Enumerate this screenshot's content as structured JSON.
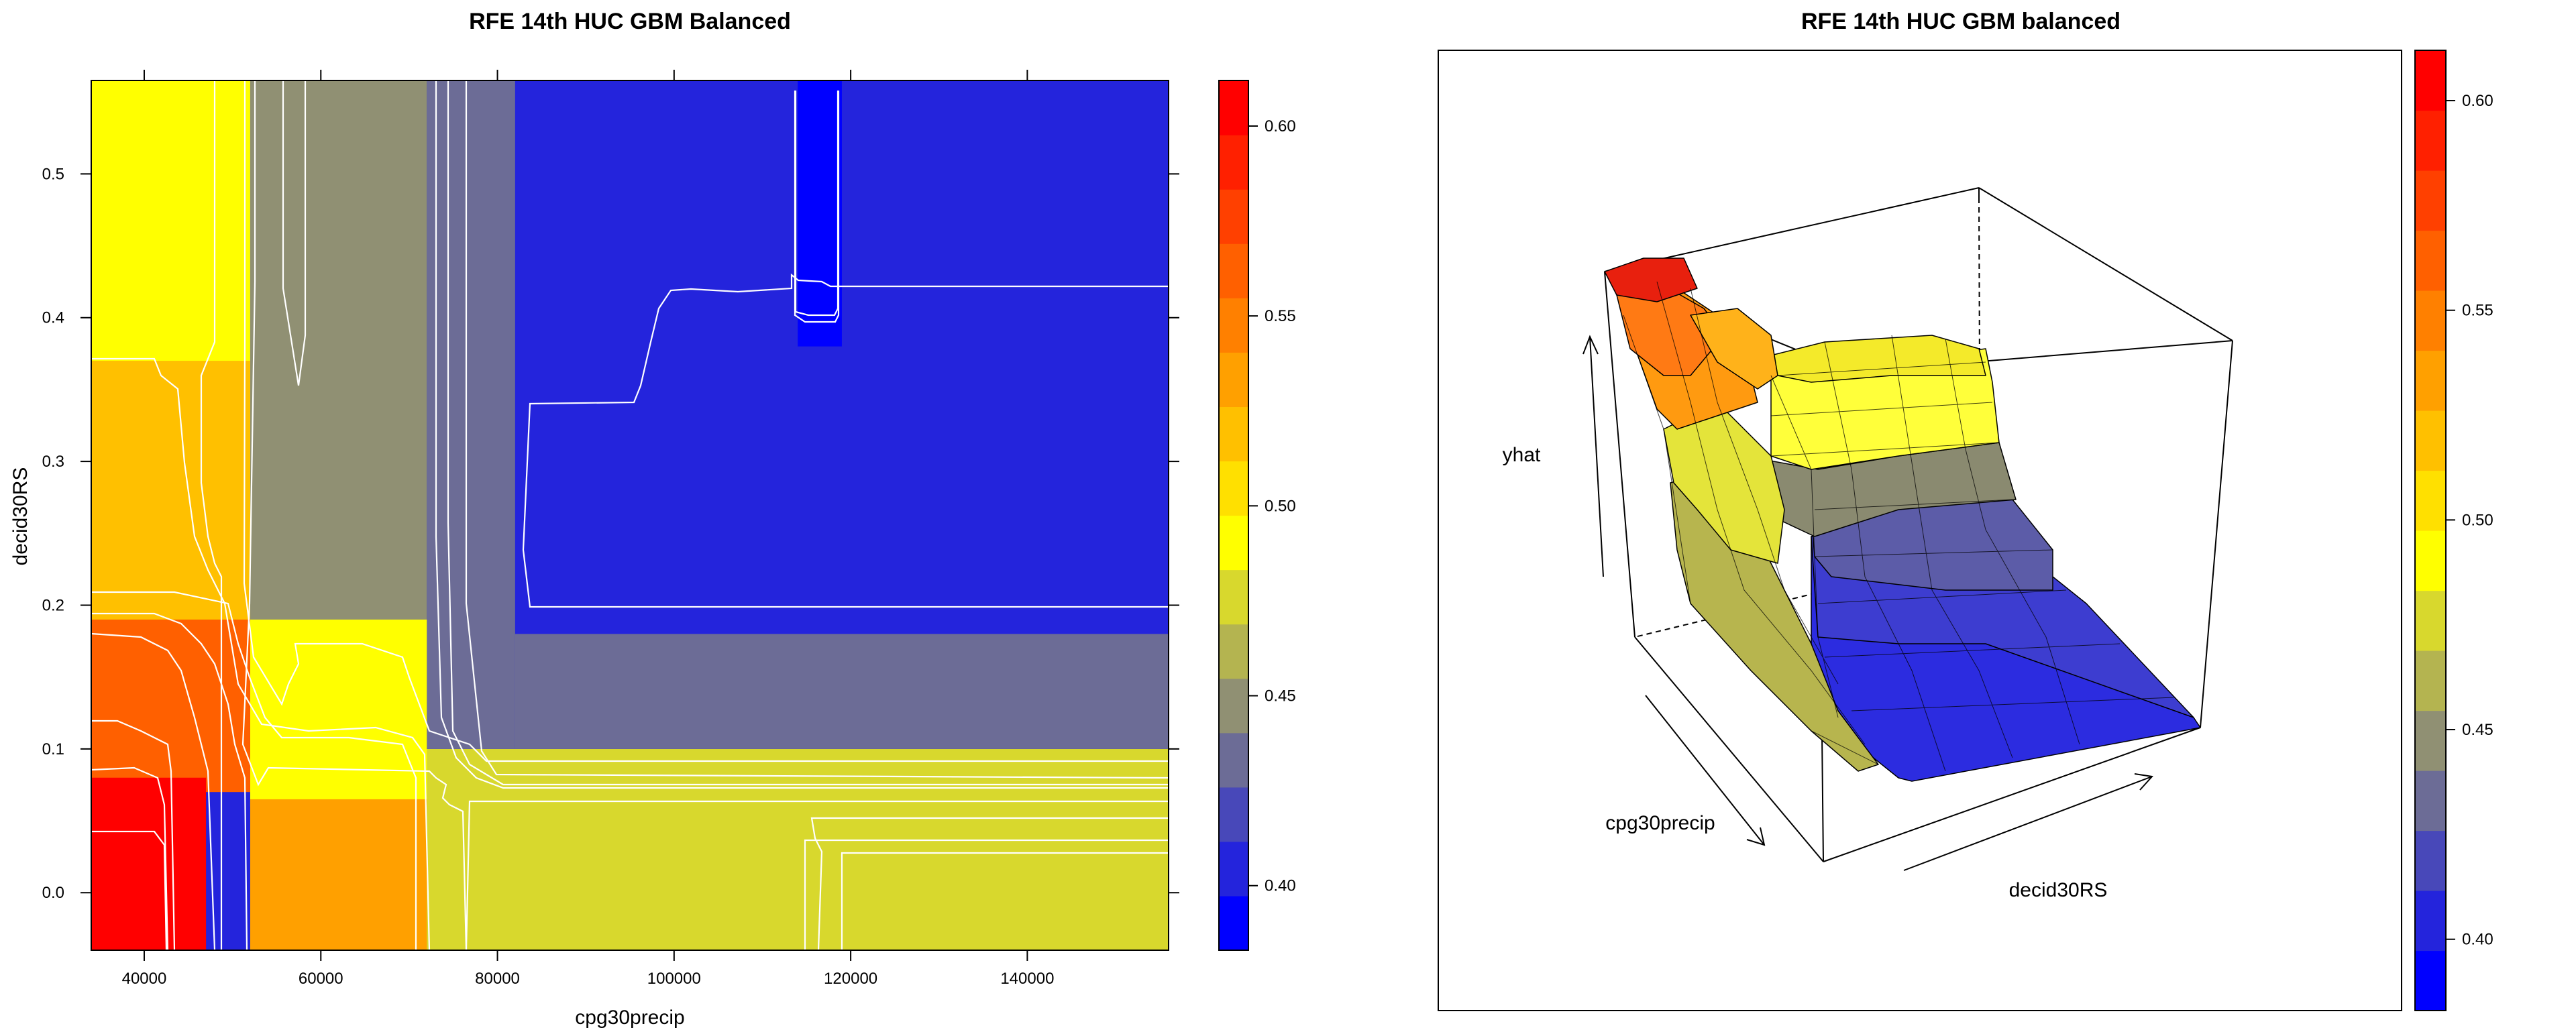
{
  "chart_data": [
    {
      "type": "heatmap",
      "title": "RFE 14th HUC GBM Balanced",
      "xlabel": "cpg30precip",
      "ylabel": "decid30RS",
      "xlim": [
        34000,
        156000
      ],
      "ylim": [
        -0.04,
        0.565
      ],
      "x_ticks": [
        40000,
        60000,
        80000,
        100000,
        120000,
        140000
      ],
      "x_tick_labels": [
        "40000",
        "60000",
        "80000",
        "100000",
        "120000",
        "140000"
      ],
      "y_ticks": [
        0.0,
        0.1,
        0.2,
        0.3,
        0.4,
        0.5
      ],
      "y_tick_labels": [
        "0.0",
        "0.1",
        "0.2",
        "0.3",
        "0.4",
        "0.5"
      ],
      "colorbar": {
        "min": 0.383,
        "max": 0.612,
        "ticks": [
          0.4,
          0.45,
          0.5,
          0.55,
          0.6
        ],
        "tick_labels": [
          "0.40",
          "0.45",
          "0.50",
          "0.55",
          "0.60"
        ],
        "colors": [
          "#0000FF",
          "#2424DC",
          "#4848B9",
          "#6C6C96",
          "#909073",
          "#B4B450",
          "#D8D82D",
          "#FFFF00",
          "#FFE000",
          "#FFC000",
          "#FFA000",
          "#FF8000",
          "#FF6000",
          "#FF4000",
          "#FF2000",
          "#FF0000"
        ]
      },
      "regions": [
        {
          "x": [
            34000,
            156000
          ],
          "y": [
            -0.04,
            0.565
          ],
          "value": 0.405
        },
        {
          "x": [
            71000,
            156000
          ],
          "y": [
            -0.04,
            0.1
          ],
          "value": 0.472
        },
        {
          "x": [
            82000,
            156000
          ],
          "y": [
            0.1,
            0.18
          ],
          "value": 0.428
        },
        {
          "x": [
            72000,
            82000
          ],
          "y": [
            0.1,
            0.565
          ],
          "value": 0.428
        },
        {
          "x": [
            52000,
            72000
          ],
          "y": [
            0.1,
            0.565
          ],
          "value": 0.447
        },
        {
          "x": [
            34000,
            52000
          ],
          "y": [
            0.19,
            0.565
          ],
          "value": 0.49
        },
        {
          "x": [
            34000,
            52000
          ],
          "y": [
            0.17,
            0.37
          ],
          "value": 0.515
        },
        {
          "x": [
            52000,
            72000
          ],
          "y": [
            0.06,
            0.19
          ],
          "value": 0.487
        },
        {
          "x": [
            52000,
            72000
          ],
          "y": [
            -0.04,
            0.065
          ],
          "value": 0.535
        },
        {
          "x": [
            34000,
            52000
          ],
          "y": [
            0.07,
            0.19
          ],
          "value": 0.565
        },
        {
          "x": [
            34000,
            47000
          ],
          "y": [
            -0.04,
            0.08
          ],
          "value": 0.605
        },
        {
          "x": [
            114000,
            119000
          ],
          "y": [
            0.38,
            0.565
          ],
          "value": 0.385
        }
      ],
      "contour_levels": [
        0.4,
        0.41,
        0.42,
        0.43,
        0.44,
        0.45,
        0.46,
        0.47,
        0.48,
        0.49,
        0.5,
        0.52,
        0.54,
        0.56,
        0.58,
        0.6
      ]
    },
    {
      "type": "surface",
      "title": "RFE 14th HUC GBM balanced",
      "xlabel": "cpg30precip",
      "ylabel": "decid30RS",
      "zlabel": "yhat",
      "colorbar": {
        "min": 0.383,
        "max": 0.612,
        "ticks": [
          0.4,
          0.45,
          0.5,
          0.55,
          0.6
        ],
        "tick_labels": [
          "0.40",
          "0.45",
          "0.50",
          "0.55",
          "0.60"
        ]
      }
    }
  ]
}
